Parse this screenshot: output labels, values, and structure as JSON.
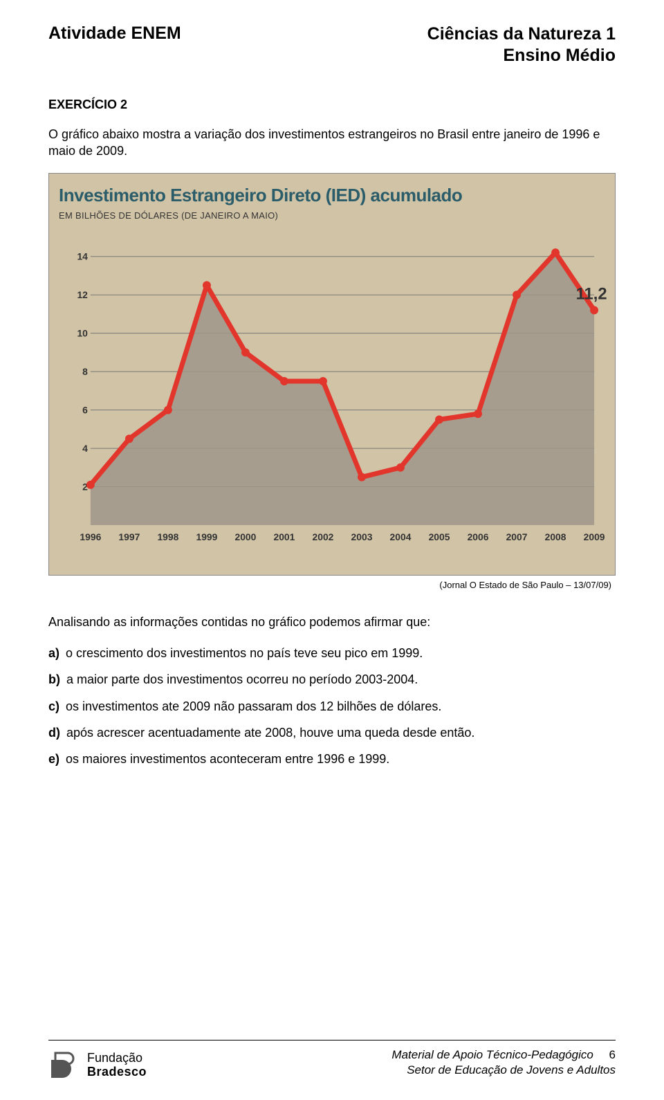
{
  "header": {
    "left": "Atividade ENEM",
    "right_line1": "Ciências da Natureza 1",
    "right_line2": "Ensino Médio"
  },
  "exercise_label": "EXERCÍCIO 2",
  "intro": "O gráfico abaixo mostra a variação dos investimentos estrangeiros no Brasil entre janeiro de 1996 e maio de 2009.",
  "chart": {
    "type": "area-line",
    "title": "Investimento Estrangeiro Direto (IED) acumulado",
    "subtitle": "EM BILHÕES DE DÓLARES (DE JANEIRO A MAIO)",
    "background_color": "#d1c3a6",
    "grid_color": "#777777",
    "title_color": "#2a5c6a",
    "line_color": "#e2352b",
    "area_color": "#a0978a",
    "line_width": 7,
    "point_radius": 6,
    "ylim": [
      0,
      15
    ],
    "yticks": [
      2,
      4,
      6,
      8,
      10,
      12,
      14
    ],
    "years": [
      "1996",
      "1997",
      "1998",
      "1999",
      "2000",
      "2001",
      "2002",
      "2003",
      "2004",
      "2005",
      "2006",
      "2007",
      "2008",
      "2009"
    ],
    "values": [
      2.1,
      4.5,
      6.0,
      12.5,
      9.0,
      7.5,
      7.5,
      2.5,
      3.0,
      5.5,
      5.8,
      12.0,
      14.2,
      11.2
    ],
    "callout": {
      "index": 13,
      "label": "11,2"
    },
    "title_fontsize": 26,
    "subtitle_fontsize": 13,
    "tick_fontsize": 14
  },
  "chart_source": "(Jornal O Estado de São Paulo – 13/07/09)",
  "question_lead": "Analisando as informações contidas no gráfico podemos afirmar que:",
  "options": [
    {
      "letter": "a)",
      "text": "o crescimento dos investimentos no país teve seu pico em 1999."
    },
    {
      "letter": "b)",
      "text": "a maior parte dos investimentos ocorreu no período 2003-2004."
    },
    {
      "letter": "c)",
      "text": "os investimentos ate 2009 não passaram dos 12 bilhões de dólares."
    },
    {
      "letter": "d)",
      "text": "após acrescer acentuadamente ate 2008, houve uma queda desde então."
    },
    {
      "letter": "e)",
      "text": "os maiores investimentos aconteceram entre 1996 e 1999."
    }
  ],
  "footer": {
    "logo_line1": "Fundação",
    "logo_line2": "Bradesco",
    "right_line1": "Material de Apoio Técnico-Pedagógico",
    "right_line2": "Setor de Educação de Jovens e Adultos",
    "page_number": "6"
  }
}
